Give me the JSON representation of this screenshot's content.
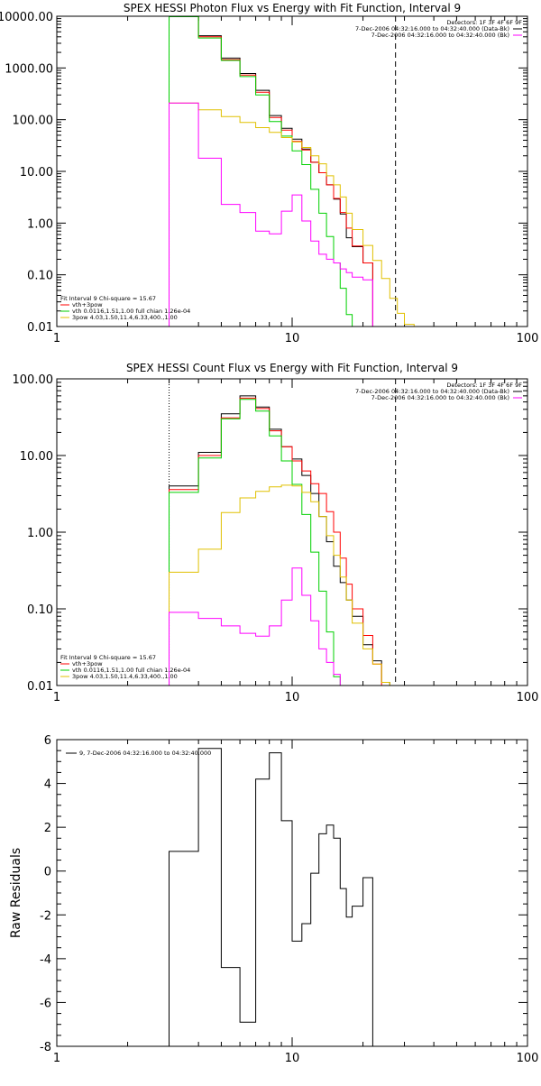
{
  "chart_data": [
    {
      "type": "line",
      "title": "SPEX HESSI Photon Flux vs Energy with Fit Function, Interval 9",
      "xscale": "log",
      "yscale": "log",
      "xlim": [
        1,
        100
      ],
      "ylim": [
        0.01,
        10000
      ],
      "grid": false,
      "x_tick_labels": [
        "1",
        "10",
        "100"
      ],
      "y_tick_labels": [
        "0.01",
        "0.10",
        "1.00",
        "10.00",
        "100.00",
        "1000.00",
        "10000.00"
      ],
      "info_lines": [
        "Detectors: 1F 3F 4F 6F 9F",
        "7-Dec-2006 04:32:16.000 to 04:32:40.000 (Data-Bk)",
        "7-Dec-2006 04:32:16.000 to 04:32:40.000 (Bk)"
      ],
      "fit_lines": [
        "Fit Interval 9   Chi-square = 15.67",
        "vth+3pow",
        "vth 0.0116,1.51,1.00  full chian 1.26e-04",
        "3pow 4.03,1.50,11.4,6.33,400.,1.00"
      ],
      "vlines": [
        {
          "x": 3,
          "style": "dotted",
          "color": "#ffa500"
        },
        {
          "x": 27.5,
          "style": "dashed",
          "color": "#000000"
        }
      ],
      "edges": [
        3,
        4,
        5,
        6,
        7,
        8,
        9,
        10,
        11,
        12,
        13,
        14,
        15,
        16,
        17,
        18,
        20,
        22,
        24,
        26,
        28,
        30,
        33,
        36,
        40
      ],
      "series": [
        {
          "name": "Data-Bk",
          "color": "#000000",
          "values": [
            10000,
            4200,
            1550,
            780,
            370,
            120,
            68,
            42,
            27,
            15,
            9.4,
            5.5,
            2.9,
            1.5,
            0.52,
            0.35,
            0.17,
            null,
            null,
            null,
            null,
            null,
            null,
            null
          ]
        },
        {
          "name": "vth+3pow",
          "color": "#ff0000",
          "values": [
            10000,
            4000,
            1450,
            730,
            340,
            110,
            63,
            38,
            26,
            15,
            9.4,
            5.5,
            3.0,
            1.6,
            0.8,
            0.36,
            0.17,
            null,
            null,
            null,
            null,
            null,
            null,
            null
          ]
        },
        {
          "name": "vth",
          "color": "#00d000",
          "values": [
            9800,
            3800,
            1400,
            680,
            300,
            92,
            48,
            25,
            13.5,
            4.5,
            1.55,
            0.55,
            0.17,
            0.055,
            0.017,
            null,
            null,
            null,
            null,
            null,
            null,
            null,
            null,
            null
          ]
        },
        {
          "name": "3pow",
          "color": "#e0c000",
          "values": [
            210,
            155,
            115,
            88,
            70,
            57,
            45,
            37,
            29,
            20,
            14,
            8.2,
            5.5,
            3.2,
            1.55,
            0.75,
            0.37,
            0.19,
            0.085,
            0.035,
            0.018,
            0.011,
            0.01,
            null
          ]
        },
        {
          "name": "Bk",
          "color": "#ff00ff",
          "values": [
            210,
            18,
            2.3,
            1.6,
            0.7,
            0.62,
            1.7,
            3.5,
            1.1,
            0.45,
            0.25,
            0.2,
            0.17,
            0.13,
            0.11,
            0.09,
            0.08,
            null,
            null,
            null,
            null,
            null,
            null,
            null
          ]
        }
      ]
    },
    {
      "type": "line",
      "title": "SPEX HESSI Count Flux vs Energy with Fit Function, Interval 9",
      "xscale": "log",
      "yscale": "log",
      "xlim": [
        1,
        100
      ],
      "ylim": [
        0.01,
        100
      ],
      "grid": false,
      "x_tick_labels": [
        "1",
        "10",
        "100"
      ],
      "y_tick_labels": [
        "0.01",
        "0.10",
        "1.00",
        "10.00",
        "100.00"
      ],
      "info_lines": [
        "Detectors: 1F 3F 4F 6F 9F",
        "7-Dec-2006 04:32:16.000 to 04:32:40.000 (Data-Bk)",
        "7-Dec-2006 04:32:16.000 to 04:32:40.000 (Bk)"
      ],
      "fit_lines": [
        "Fit Interval 9   Chi-square = 15.67",
        "vth+3pow",
        "vth 0.0116,1.51,1.00  full chian 1.26e-04",
        "3pow 4.03,1.50,11.4,6.33,400.,1.00"
      ],
      "vlines": [
        {
          "x": 3,
          "style": "dotted",
          "color": "#000000"
        },
        {
          "x": 27.5,
          "style": "dashed",
          "color": "#000000"
        }
      ],
      "edges": [
        3,
        4,
        5,
        6,
        7,
        8,
        9,
        10,
        11,
        12,
        13,
        14,
        15,
        16,
        17,
        18,
        20,
        22,
        24,
        26,
        28,
        30
      ],
      "series": [
        {
          "name": "Data-Bk",
          "color": "#000000",
          "values": [
            4.0,
            11,
            35,
            60,
            43,
            22,
            13,
            9,
            5.5,
            3.2,
            1.6,
            0.75,
            0.36,
            0.22,
            0.13,
            0.08,
            0.034,
            0.021,
            0.011,
            null,
            null
          ]
        },
        {
          "name": "vth+3pow",
          "color": "#ff0000",
          "values": [
            3.6,
            10,
            31,
            56,
            41,
            21,
            13,
            8.5,
            6.3,
            4.3,
            3.2,
            1.85,
            1.0,
            0.46,
            0.21,
            0.1,
            0.045,
            0.019,
            null,
            null,
            null
          ]
        },
        {
          "name": "vth",
          "color": "#00d000",
          "values": [
            3.3,
            9.3,
            30,
            54,
            38,
            18,
            8.5,
            4.2,
            1.7,
            0.55,
            0.17,
            0.05,
            0.013,
            null,
            null,
            null,
            null,
            null,
            null,
            null,
            null
          ]
        },
        {
          "name": "3pow",
          "color": "#e0c000",
          "values": [
            0.3,
            0.6,
            1.8,
            2.8,
            3.4,
            3.9,
            4.1,
            4.0,
            3.3,
            2.5,
            1.6,
            0.9,
            0.5,
            0.26,
            0.13,
            0.065,
            0.03,
            0.019,
            0.011,
            null,
            null
          ]
        },
        {
          "name": "Bk",
          "color": "#ff00ff",
          "values": [
            0.09,
            0.075,
            0.06,
            0.048,
            0.044,
            0.06,
            0.13,
            0.34,
            0.15,
            0.07,
            0.03,
            0.02,
            0.014,
            0.01,
            null,
            null,
            null,
            null,
            null,
            null,
            null
          ]
        }
      ]
    },
    {
      "type": "line",
      "title": "",
      "ylabel": "Raw Residuals",
      "xscale": "log",
      "xlim": [
        1,
        100
      ],
      "ylim": [
        -8,
        6
      ],
      "grid": false,
      "x_tick_labels": [
        "1",
        "10",
        "100"
      ],
      "y_tick_labels": [
        "6",
        "4",
        "2",
        "0",
        "-2",
        "-4",
        "-6",
        "-8"
      ],
      "legend_label": "9,  7-Dec-2006 04:32:16.000 to 04:32:40.000",
      "edges": [
        3,
        4,
        5,
        6,
        7,
        8,
        9,
        10,
        11,
        12,
        13,
        14,
        15,
        16,
        17,
        18,
        20,
        22,
        24,
        26,
        28
      ],
      "series": [
        {
          "name": "9,  7-Dec-2006 04:32:16.000 to 04:32:40.000",
          "color": "#000000",
          "values": [
            0.9,
            5.6,
            -4.4,
            -6.9,
            4.2,
            5.4,
            2.3,
            -3.2,
            -2.4,
            -0.1,
            1.7,
            2.1,
            1.5,
            -0.8,
            -2.1,
            -1.6,
            -0.3,
            -8.5,
            null,
            null
          ]
        }
      ]
    }
  ]
}
